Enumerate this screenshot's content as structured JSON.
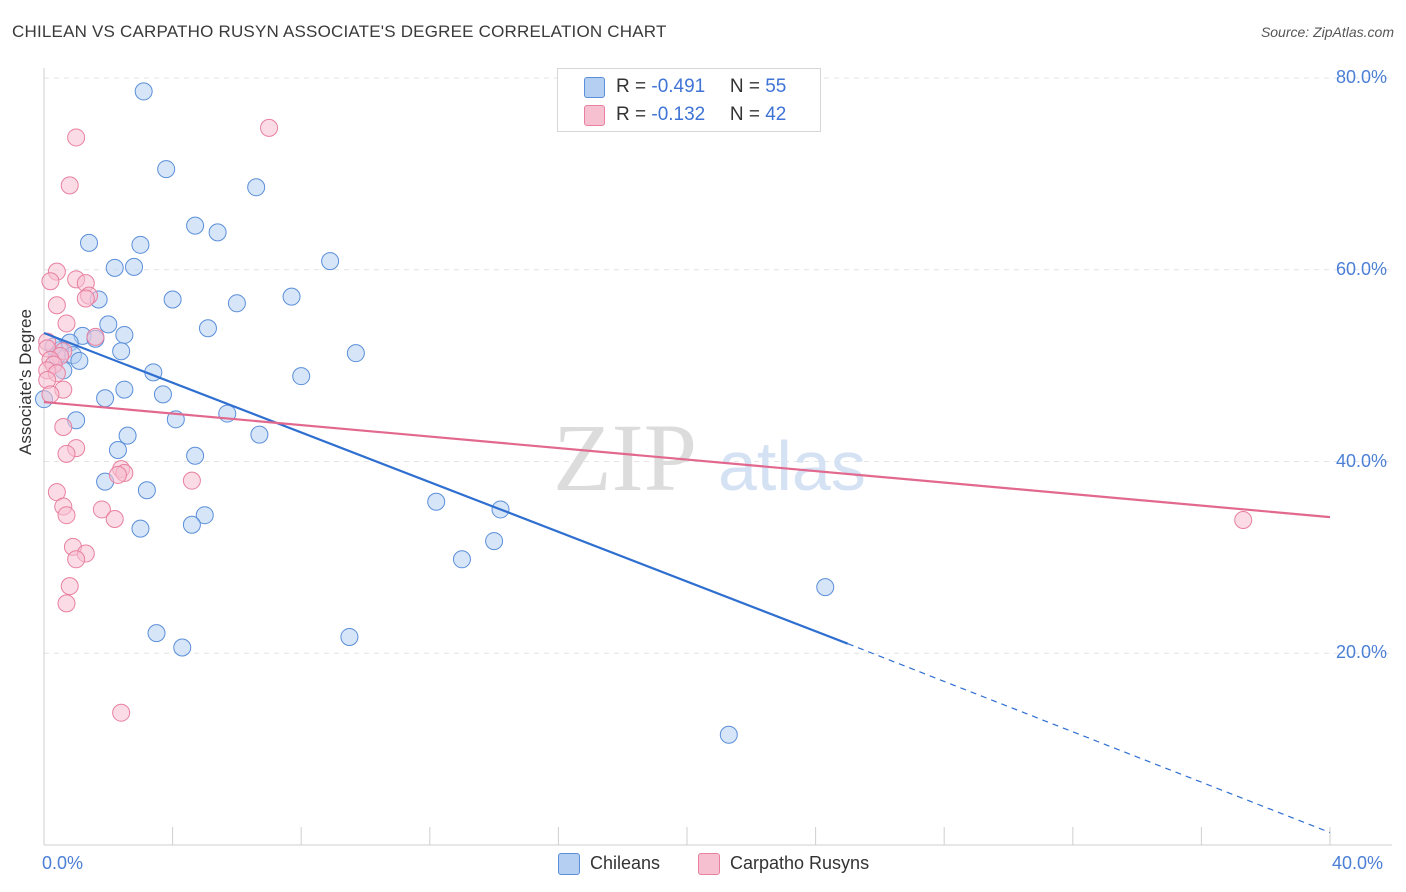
{
  "title": "CHILEAN VS CARPATHO RUSYN ASSOCIATE'S DEGREE CORRELATION CHART",
  "source": "Source: ZipAtlas.com",
  "watermark": {
    "zip": "ZIP",
    "atlas": "atlas"
  },
  "legend": {
    "rows": [
      {
        "r_label": "R = ",
        "r_value": "-0.491",
        "n_label": "N = ",
        "n_value": "55",
        "color": "#a8c6f0"
      },
      {
        "r_label": "R = ",
        "r_value": " -0.132",
        "n_label": "N = ",
        "n_value": "42",
        "color": "#f5b3c8"
      }
    ]
  },
  "bottom_legend": [
    {
      "label": "Chileans",
      "color": "#a8c6f0"
    },
    {
      "label": "Carpatho Rusyns",
      "color": "#f5b3c8"
    }
  ],
  "chart_data": {
    "type": "scatter",
    "title": "CHILEAN VS CARPATHO RUSYN ASSOCIATE'S DEGREE CORRELATION CHART",
    "xlabel": "",
    "ylabel": "Associate's Degree",
    "xlim": [
      0,
      40
    ],
    "ylim": [
      0,
      80
    ],
    "x_tick_labels": [
      {
        "value": 0,
        "label": "0.0%"
      },
      {
        "value": 40,
        "label": "40.0%"
      }
    ],
    "y_tick_labels": [
      {
        "value": 20,
        "label": "20.0%"
      },
      {
        "value": 40,
        "label": "40.0%"
      },
      {
        "value": 60,
        "label": "60.0%"
      },
      {
        "value": 80,
        "label": "80.0%"
      }
    ],
    "grid": true,
    "series": [
      {
        "name": "Chileans",
        "color": "#5b8fd9",
        "fill": "#b4cff2",
        "r": -0.491,
        "n": 55,
        "trendline": {
          "x0": 0,
          "y0": 53.4,
          "x1": 25.0,
          "y1": 21.0,
          "dashed_to_x": 40.0,
          "dashed_to_y": 1.3,
          "color": "#2f6fd0"
        },
        "points": [
          [
            3.1,
            78.6
          ],
          [
            3.8,
            70.5
          ],
          [
            6.6,
            68.6
          ],
          [
            5.4,
            63.9
          ],
          [
            4.7,
            64.6
          ],
          [
            3.0,
            62.6
          ],
          [
            1.4,
            62.8
          ],
          [
            2.2,
            60.2
          ],
          [
            2.8,
            60.3
          ],
          [
            8.9,
            60.9
          ],
          [
            7.7,
            57.2
          ],
          [
            1.7,
            56.9
          ],
          [
            4.0,
            56.9
          ],
          [
            6.0,
            56.5
          ],
          [
            2.0,
            54.3
          ],
          [
            5.1,
            53.9
          ],
          [
            1.2,
            53.1
          ],
          [
            1.6,
            52.8
          ],
          [
            2.5,
            53.2
          ],
          [
            0.8,
            52.4
          ],
          [
            0.5,
            51.6
          ],
          [
            2.4,
            51.5
          ],
          [
            9.7,
            51.3
          ],
          [
            0.9,
            51.1
          ],
          [
            0.4,
            51.0
          ],
          [
            3.4,
            49.3
          ],
          [
            8.0,
            48.9
          ],
          [
            2.5,
            47.5
          ],
          [
            0.0,
            46.5
          ],
          [
            1.9,
            46.6
          ],
          [
            3.7,
            47.0
          ],
          [
            5.7,
            45.0
          ],
          [
            4.1,
            44.4
          ],
          [
            1.0,
            44.3
          ],
          [
            6.7,
            42.8
          ],
          [
            2.6,
            42.7
          ],
          [
            2.3,
            41.2
          ],
          [
            4.7,
            40.6
          ],
          [
            1.9,
            37.9
          ],
          [
            3.2,
            37.0
          ],
          [
            12.2,
            35.8
          ],
          [
            14.2,
            35.0
          ],
          [
            5.0,
            34.4
          ],
          [
            4.6,
            33.4
          ],
          [
            3.0,
            33.0
          ],
          [
            14.0,
            31.7
          ],
          [
            13.0,
            29.8
          ],
          [
            24.3,
            26.9
          ],
          [
            3.5,
            22.1
          ],
          [
            9.5,
            21.7
          ],
          [
            4.3,
            20.6
          ],
          [
            21.3,
            11.5
          ],
          [
            0.3,
            52.0
          ],
          [
            1.1,
            50.5
          ],
          [
            0.6,
            49.5
          ]
        ]
      },
      {
        "name": "Carpatho Rusyns",
        "color": "#e8809f",
        "fill": "#f7c0d1",
        "r": -0.132,
        "n": 42,
        "trendline": {
          "x0": 0,
          "y0": 46.2,
          "x1": 40.0,
          "y1": 34.2,
          "color": "#e2688e"
        },
        "points": [
          [
            7.0,
            74.8
          ],
          [
            1.0,
            73.8
          ],
          [
            0.8,
            68.8
          ],
          [
            0.4,
            59.8
          ],
          [
            0.2,
            58.8
          ],
          [
            1.0,
            59.0
          ],
          [
            1.3,
            58.6
          ],
          [
            1.4,
            57.3
          ],
          [
            1.3,
            57.0
          ],
          [
            0.4,
            56.3
          ],
          [
            0.7,
            54.4
          ],
          [
            1.6,
            53.0
          ],
          [
            0.1,
            52.5
          ],
          [
            0.1,
            51.8
          ],
          [
            0.6,
            51.5
          ],
          [
            0.5,
            51.0
          ],
          [
            0.2,
            50.6
          ],
          [
            0.3,
            50.1
          ],
          [
            0.1,
            49.5
          ],
          [
            0.4,
            49.2
          ],
          [
            0.1,
            48.5
          ],
          [
            0.6,
            47.5
          ],
          [
            0.2,
            47.0
          ],
          [
            0.6,
            43.6
          ],
          [
            1.0,
            41.4
          ],
          [
            0.7,
            40.8
          ],
          [
            2.4,
            39.2
          ],
          [
            2.5,
            38.8
          ],
          [
            2.3,
            38.6
          ],
          [
            4.6,
            38.0
          ],
          [
            0.4,
            36.8
          ],
          [
            0.6,
            35.3
          ],
          [
            1.8,
            35.0
          ],
          [
            0.7,
            34.4
          ],
          [
            2.2,
            34.0
          ],
          [
            0.9,
            31.1
          ],
          [
            1.3,
            30.4
          ],
          [
            1.0,
            29.8
          ],
          [
            0.8,
            27.0
          ],
          [
            0.7,
            25.2
          ],
          [
            2.4,
            13.8
          ],
          [
            37.3,
            33.9
          ]
        ]
      }
    ]
  }
}
